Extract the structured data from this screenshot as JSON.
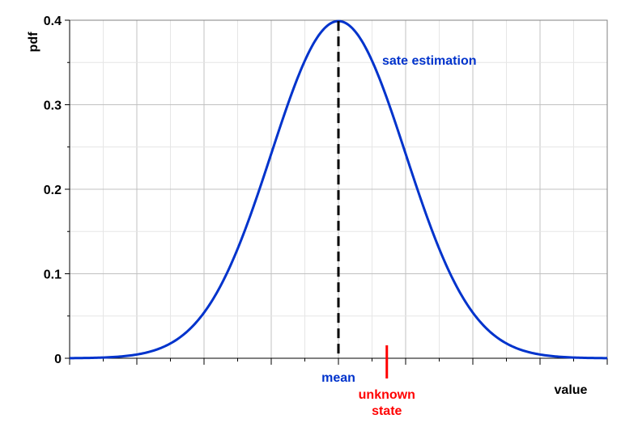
{
  "chart_data": {
    "type": "line",
    "title": "",
    "xlabel": "value",
    "ylabel": "pdf",
    "xlim": [
      -4,
      4
    ],
    "ylim": [
      0,
      0.4
    ],
    "yticks": [
      {
        "value": 0,
        "label": "0"
      },
      {
        "value": 0.1,
        "label": "0.1"
      },
      {
        "value": 0.2,
        "label": "0.2"
      },
      {
        "value": 0.3,
        "label": "0.3"
      },
      {
        "value": 0.4,
        "label": "0.4"
      }
    ],
    "grid": true,
    "series": [
      {
        "name": "sate estimation",
        "color": "#0033cc",
        "distribution": "normal",
        "mean": 0,
        "sd": 1
      }
    ],
    "markers": {
      "mean": {
        "label": "mean",
        "x": 0,
        "color": "#000000",
        "label_color": "#0033cc"
      },
      "unknown": {
        "label_lines": [
          "unknown",
          "state"
        ],
        "x": 0.72,
        "color": "#ff0000"
      }
    }
  }
}
